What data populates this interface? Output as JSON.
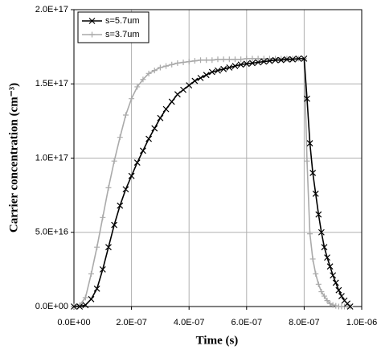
{
  "chart_data": {
    "type": "line",
    "xlabel": "Time (s)",
    "ylabel": "Carrier concentration (cm⁻³)",
    "x": [
      0,
      2e-08,
      4e-08,
      6e-08,
      8e-08,
      1e-07,
      1.2e-07,
      1.4e-07,
      1.6e-07,
      1.8e-07,
      2e-07,
      2.2e-07,
      2.4e-07,
      2.6e-07,
      2.8e-07,
      3e-07,
      3.2e-07,
      3.4e-07,
      3.6e-07,
      3.8e-07,
      4e-07,
      4.2e-07,
      4.4e-07,
      4.6e-07,
      4.8e-07,
      5e-07,
      5.2e-07,
      5.4e-07,
      5.6e-07,
      5.8e-07,
      6e-07,
      6.2e-07,
      6.4e-07,
      6.6e-07,
      6.8e-07,
      7e-07,
      7.2e-07,
      7.4e-07,
      7.6e-07,
      7.8e-07,
      8e-07,
      8.1e-07,
      8.2e-07,
      8.3e-07,
      8.4e-07,
      8.5e-07,
      8.6e-07,
      8.7e-07,
      8.8e-07,
      8.9e-07,
      9e-07,
      9.1e-07,
      9.2e-07,
      9.3e-07,
      9.4e-07,
      9.5e-07,
      9.6e-07
    ],
    "series": [
      {
        "name": "s=5.7um",
        "color": "#000000",
        "marker": "x",
        "values": [
          0,
          0,
          1000000000000000.0,
          5000000000000000.0,
          1.2e+16,
          2.5e+16,
          4e+16,
          5.5e+16,
          6.8e+16,
          7.9e+16,
          8.8e+16,
          9.7e+16,
          1.05e+17,
          1.13e+17,
          1.2e+17,
          1.27e+17,
          1.33e+17,
          1.38e+17,
          1.43e+17,
          1.46e+17,
          1.49e+17,
          1.52e+17,
          1.54e+17,
          1.56e+17,
          1.58e+17,
          1.59e+17,
          1.6e+17,
          1.61e+17,
          1.62e+17,
          1.63e+17,
          1.635e+17,
          1.64e+17,
          1.645e+17,
          1.65e+17,
          1.655e+17,
          1.66e+17,
          1.66e+17,
          1.665e+17,
          1.665e+17,
          1.67e+17,
          1.67e+17,
          1.4e+17,
          1.1e+17,
          9e+16,
          7.6e+16,
          6.2e+16,
          5e+16,
          4e+16,
          3.3e+16,
          2.7e+16,
          2.1e+16,
          1.6e+16,
          1.1e+16,
          7000000000000000.0,
          4000000000000000.0,
          2000000000000000.0,
          0
        ]
      },
      {
        "name": "s=3.7um",
        "color": "#aaaaaa",
        "marker": "+",
        "values": [
          0,
          1000000000000000.0,
          6000000000000000.0,
          2.2e+16,
          4e+16,
          6e+16,
          8e+16,
          9.8e+16,
          1.14e+17,
          1.29e+17,
          1.4e+17,
          1.48e+17,
          1.53e+17,
          1.57e+17,
          1.59e+17,
          1.61e+17,
          1.62e+17,
          1.63e+17,
          1.64e+17,
          1.645e+17,
          1.65e+17,
          1.655e+17,
          1.66e+17,
          1.66e+17,
          1.66e+17,
          1.665e+17,
          1.665e+17,
          1.665e+17,
          1.665e+17,
          1.665e+17,
          1.67e+17,
          1.67e+17,
          1.67e+17,
          1.67e+17,
          1.67e+17,
          1.67e+17,
          1.67e+17,
          1.67e+17,
          1.67e+17,
          1.67e+17,
          1.67e+17,
          9.8e+16,
          4.9e+16,
          3.2e+16,
          2.2e+16,
          1.5e+16,
          1e+16,
          7000000000000000.0,
          4000000000000000.0,
          2000000000000000.0,
          1000000000000000.0,
          500000000000000.0,
          0,
          0,
          0,
          0,
          0
        ]
      }
    ],
    "xlim": [
      0,
      1e-06
    ],
    "ylim": [
      0,
      2e+17
    ],
    "xticks": [
      {
        "value": 0,
        "label": "0.0E+00"
      },
      {
        "value": 2e-07,
        "label": "2.0E-07"
      },
      {
        "value": 4e-07,
        "label": "4.0E-07"
      },
      {
        "value": 6e-07,
        "label": "6.0E-07"
      },
      {
        "value": 8e-07,
        "label": "8.0E-07"
      },
      {
        "value": 1e-06,
        "label": "1.0E-06"
      }
    ],
    "yticks": [
      {
        "value": 0,
        "label": "0.0E+00"
      },
      {
        "value": 5e+16,
        "label": "5.0E+16"
      },
      {
        "value": 1e+17,
        "label": "1.0E+17"
      },
      {
        "value": 1.5e+17,
        "label": "1.5E+17"
      },
      {
        "value": 2e+17,
        "label": "2.0E+17"
      }
    ],
    "grid": true,
    "legend": "top-left"
  }
}
